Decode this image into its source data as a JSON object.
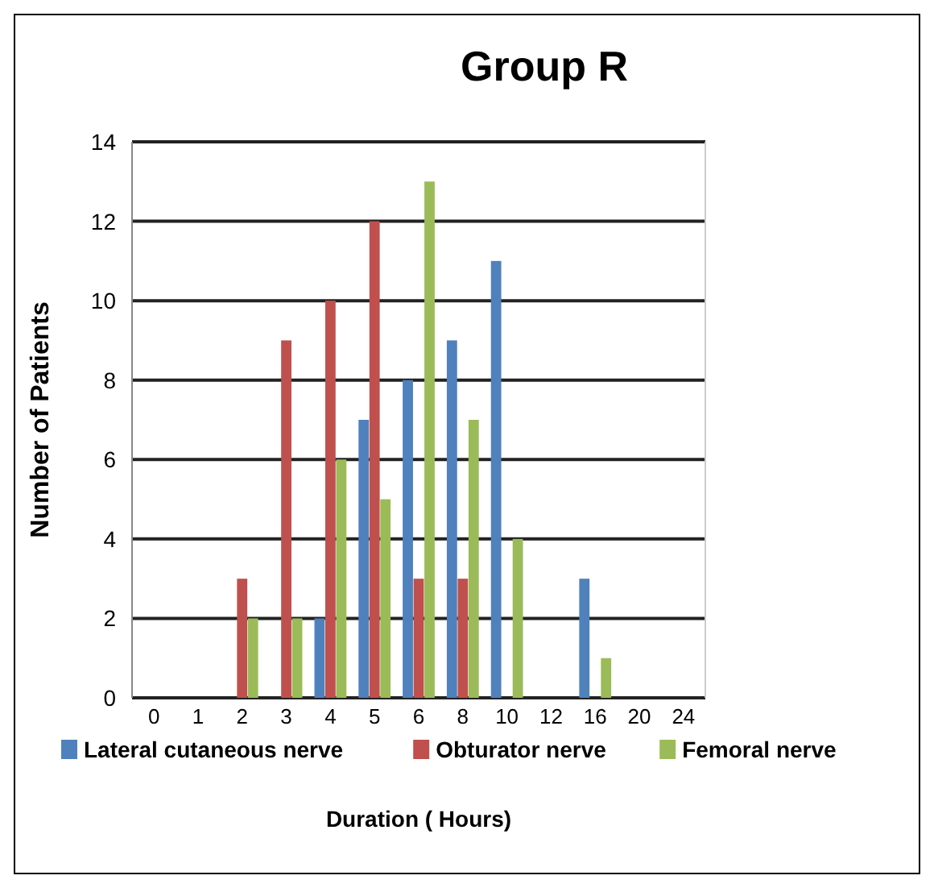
{
  "chart_data": {
    "type": "bar",
    "title": "Group R",
    "xlabel": "Duration ( Hours)",
    "ylabel": "Number of Patients",
    "categories": [
      "0",
      "1",
      "2",
      "3",
      "4",
      "5",
      "6",
      "8",
      "10",
      "12",
      "16",
      "20",
      "24"
    ],
    "series": [
      {
        "name": "Lateral cutaneous nerve",
        "color": "#4f81bd",
        "values": [
          0,
          0,
          0,
          0,
          2,
          7,
          8,
          9,
          11,
          0,
          3,
          0,
          0
        ]
      },
      {
        "name": "Obturator nerve",
        "color": "#c0504d",
        "values": [
          0,
          0,
          3,
          9,
          10,
          12,
          3,
          3,
          0,
          0,
          0,
          0,
          0
        ]
      },
      {
        "name": "Femoral nerve",
        "color": "#9bbb59",
        "values": [
          0,
          0,
          2,
          2,
          6,
          5,
          13,
          7,
          4,
          0,
          1,
          0,
          0
        ]
      }
    ],
    "ylim": [
      0,
      14
    ],
    "yticks": [
      0,
      2,
      4,
      6,
      8,
      10,
      12,
      14
    ],
    "grid": "y",
    "legend": "bottom"
  }
}
